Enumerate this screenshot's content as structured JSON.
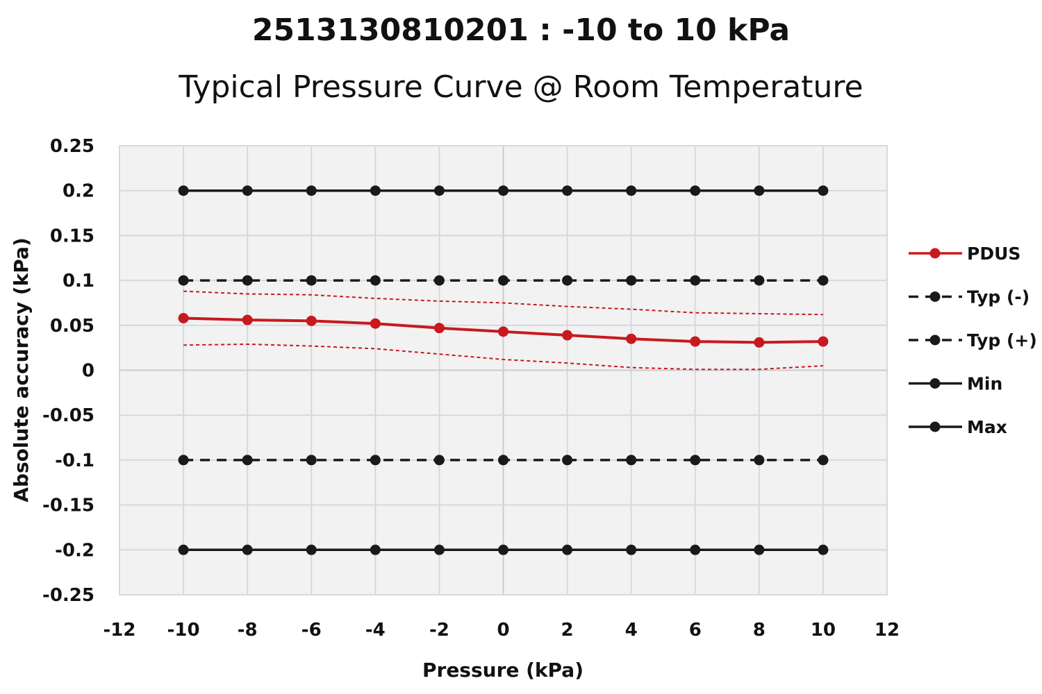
{
  "chart_data": {
    "type": "line",
    "title": "2513130810201 : -10 to 10 kPa",
    "subtitle": "Typical Pressure Curve @ Room Temperature",
    "xlabel": "Pressure (kPa)",
    "ylabel": "Absolute accuracy (kPa)",
    "xlim": [
      -12,
      12
    ],
    "ylim": [
      -0.25,
      0.25
    ],
    "x_ticks": [
      "-12",
      "-10",
      "-8",
      "-6",
      "-4",
      "-2",
      "0",
      "2",
      "4",
      "6",
      "8",
      "10",
      "12"
    ],
    "y_ticks": [
      "0.25",
      "0.2",
      "0.15",
      "0.1",
      "0.05",
      "0",
      "-0.05",
      "-0.1",
      "-0.15",
      "-0.2",
      "-0.25"
    ],
    "grid": true,
    "legend_position": "right",
    "x": [
      -10,
      -8,
      -6,
      -4,
      -2,
      0,
      2,
      4,
      6,
      8,
      10
    ],
    "series": [
      {
        "name": "PDUS",
        "color": "#c8191e",
        "style": "solid",
        "values": [
          0.058,
          0.056,
          0.055,
          0.052,
          0.047,
          0.043,
          0.039,
          0.035,
          0.032,
          0.031,
          0.032
        ]
      },
      {
        "name": "Typ (-)",
        "color": "#1a1a1a",
        "style": "dashed",
        "values": [
          -0.1,
          -0.1,
          -0.1,
          -0.1,
          -0.1,
          -0.1,
          -0.1,
          -0.1,
          -0.1,
          -0.1,
          -0.1
        ]
      },
      {
        "name": "Typ (+)",
        "color": "#1a1a1a",
        "style": "dashed",
        "values": [
          0.1,
          0.1,
          0.1,
          0.1,
          0.1,
          0.1,
          0.1,
          0.1,
          0.1,
          0.1,
          0.1
        ]
      },
      {
        "name": "Min",
        "color": "#1a1a1a",
        "style": "solid",
        "values": [
          -0.2,
          -0.2,
          -0.2,
          -0.2,
          -0.2,
          -0.2,
          -0.2,
          -0.2,
          -0.2,
          -0.2,
          -0.2
        ]
      },
      {
        "name": "Max",
        "color": "#1a1a1a",
        "style": "solid",
        "values": [
          0.2,
          0.2,
          0.2,
          0.2,
          0.2,
          0.2,
          0.2,
          0.2,
          0.2,
          0.2,
          0.2
        ]
      }
    ],
    "bands": [
      {
        "color": "#c8191e",
        "style": "dotted",
        "values": [
          0.088,
          0.085,
          0.084,
          0.08,
          0.077,
          0.075,
          0.071,
          0.068,
          0.064,
          0.063,
          0.062
        ]
      },
      {
        "color": "#c8191e",
        "style": "dotted",
        "values": [
          0.028,
          0.029,
          0.027,
          0.024,
          0.018,
          0.012,
          0.008,
          0.003,
          0.001,
          0.001,
          0.005
        ]
      }
    ]
  }
}
